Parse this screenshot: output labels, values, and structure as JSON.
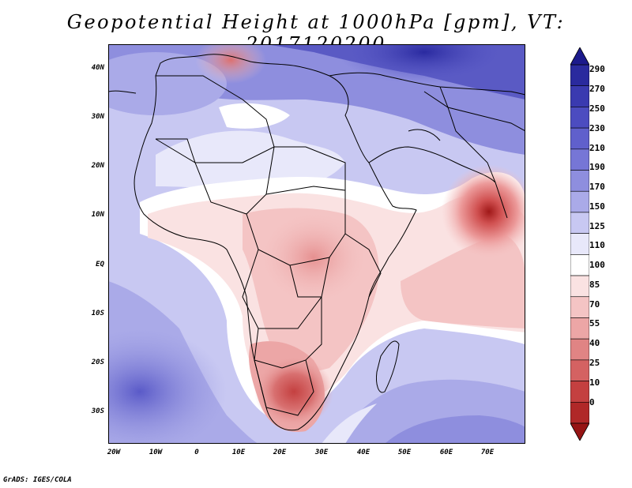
{
  "title": "Geopotential Height at 1000hPa [gpm], VT: 2017120200",
  "lat_labels": [
    "40N",
    "30N",
    "20N",
    "10N",
    "EQ",
    "10S",
    "20S",
    "30S"
  ],
  "lon_labels": [
    "20W",
    "10W",
    "0",
    "10E",
    "20E",
    "30E",
    "40E",
    "50E",
    "60E",
    "70E"
  ],
  "colorbar": {
    "levels": [
      "290",
      "270",
      "250",
      "230",
      "210",
      "190",
      "170",
      "150",
      "125",
      "110",
      "100",
      "85",
      "70",
      "55",
      "40",
      "25",
      "10",
      "0"
    ],
    "colors": [
      "#1c1a8c",
      "#2a2a9e",
      "#3a3ab0",
      "#4c4cc0",
      "#6060cc",
      "#7676d6",
      "#8e8ede",
      "#aaaae8",
      "#c8c8f2",
      "#e8e8fa",
      "#ffffff",
      "#fae2e2",
      "#f4c4c4",
      "#eca6a6",
      "#e08484",
      "#d46262",
      "#c44040",
      "#b02828",
      "#961414"
    ]
  },
  "credit": "GrADS: IGES/COLA"
}
